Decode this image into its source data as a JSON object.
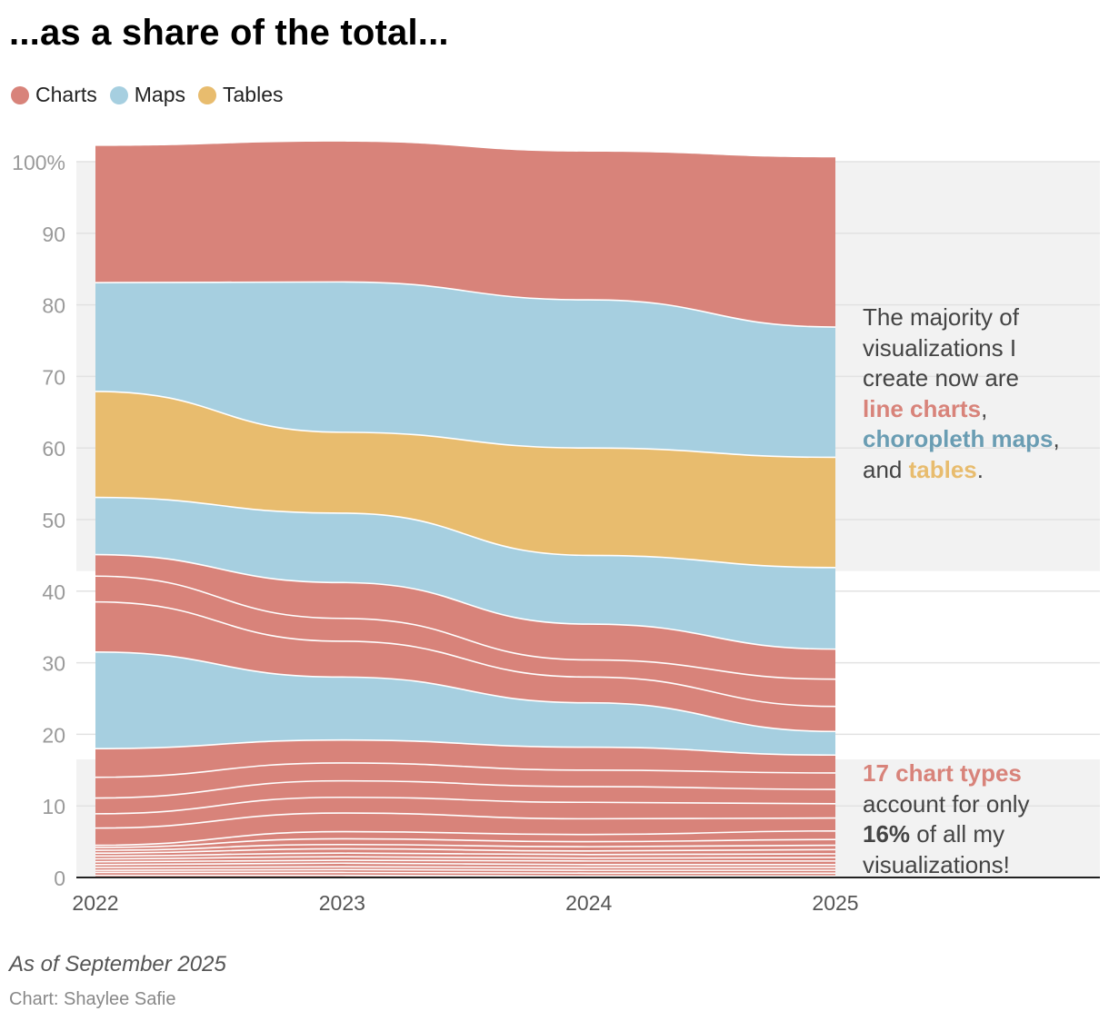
{
  "title": "...as a share of the total...",
  "legend": [
    {
      "label": "Charts",
      "color": "#d8837a"
    },
    {
      "label": "Maps",
      "color": "#a6cfe0"
    },
    {
      "label": "Tables",
      "color": "#e8bc6e"
    }
  ],
  "colors": {
    "charts": "#d8837a",
    "maps": "#a6cfe0",
    "tables": "#e8bc6e",
    "highlight_band": "#f2f2f2",
    "maps_text": "#6a9db3"
  },
  "annotation_top": {
    "line1": "The majority of",
    "line2": "visualizations I",
    "line3": "create now are",
    "charts_term": "line charts",
    "maps_term": "choropleth maps",
    "and_word": "and",
    "tables_term": "tables",
    "comma": ",",
    "period": "."
  },
  "annotation_bottom": {
    "count_text": "17 chart types",
    "line2": "account for only",
    "pct_text": "16%",
    "line3_rest": " of all my",
    "line4": "visualizations!"
  },
  "footnote": "As of September 2025",
  "credit": "Chart: Shaylee Safie",
  "chart_data": {
    "type": "area",
    "stacked": true,
    "normalized": true,
    "x": [
      "2022",
      "2023",
      "2024",
      "2025"
    ],
    "y_ticks": [
      "0",
      "10",
      "20",
      "30",
      "40",
      "50",
      "60",
      "70",
      "80",
      "90",
      "100%"
    ],
    "ylim": [
      0,
      100
    ],
    "highlight_bands": [
      [
        0,
        16.5
      ],
      [
        42.8,
        100
      ]
    ],
    "legend_position": "top-left",
    "layers_bottom_to_top": [
      {
        "category": "Charts",
        "values": [
          0.3,
          0.3,
          0.2,
          0.2
        ]
      },
      {
        "category": "Charts",
        "values": [
          0.4,
          0.4,
          0.4,
          0.4
        ]
      },
      {
        "category": "Charts",
        "values": [
          0.3,
          0.4,
          0.4,
          0.4
        ]
      },
      {
        "category": "Charts",
        "values": [
          0.4,
          0.4,
          0.4,
          0.4
        ]
      },
      {
        "category": "Charts",
        "values": [
          0.4,
          0.5,
          0.4,
          0.4
        ]
      },
      {
        "category": "Charts",
        "values": [
          0.4,
          0.4,
          0.5,
          0.5
        ]
      },
      {
        "category": "Charts",
        "values": [
          0.4,
          0.5,
          0.4,
          0.5
        ]
      },
      {
        "category": "Charts",
        "values": [
          0.4,
          0.5,
          0.5,
          0.5
        ]
      },
      {
        "category": "Charts",
        "values": [
          0.4,
          0.6,
          0.5,
          0.6
        ]
      },
      {
        "category": "Charts",
        "values": [
          0.4,
          0.6,
          0.6,
          0.6
        ]
      },
      {
        "category": "Charts",
        "values": [
          0.4,
          0.8,
          0.7,
          0.8
        ]
      },
      {
        "category": "Charts",
        "values": [
          0.3,
          1.0,
          1.0,
          1.2
        ]
      },
      {
        "category": "Charts",
        "values": [
          2.4,
          2.6,
          2.2,
          1.8
        ]
      },
      {
        "category": "Charts",
        "values": [
          2.0,
          2.2,
          2.3,
          2.0
        ]
      },
      {
        "category": "Charts",
        "values": [
          2.2,
          2.3,
          2.2,
          2.0
        ]
      },
      {
        "category": "Charts",
        "values": [
          2.9,
          2.5,
          2.3,
          2.3
        ]
      },
      {
        "category": "Charts",
        "values": [
          4.0,
          3.2,
          3.2,
          2.5
        ]
      },
      {
        "category": "Maps",
        "values": [
          13.5,
          8.8,
          6.2,
          3.3
        ]
      },
      {
        "category": "Charts",
        "values": [
          7.0,
          5.0,
          3.6,
          3.5
        ]
      },
      {
        "category": "Charts",
        "values": [
          3.6,
          3.2,
          2.4,
          3.8
        ]
      },
      {
        "category": "Charts",
        "values": [
          3.0,
          5.0,
          5.0,
          4.2
        ]
      },
      {
        "category": "Maps",
        "values": [
          8.0,
          9.7,
          9.6,
          11.4
        ]
      },
      {
        "category": "Tables",
        "values": [
          14.8,
          11.3,
          15.0,
          15.4
        ]
      },
      {
        "category": "Maps",
        "values": [
          15.2,
          21.0,
          20.7,
          18.2
        ]
      },
      {
        "category": "Charts",
        "values": [
          19.1,
          19.6,
          20.7,
          23.7
        ]
      }
    ]
  }
}
